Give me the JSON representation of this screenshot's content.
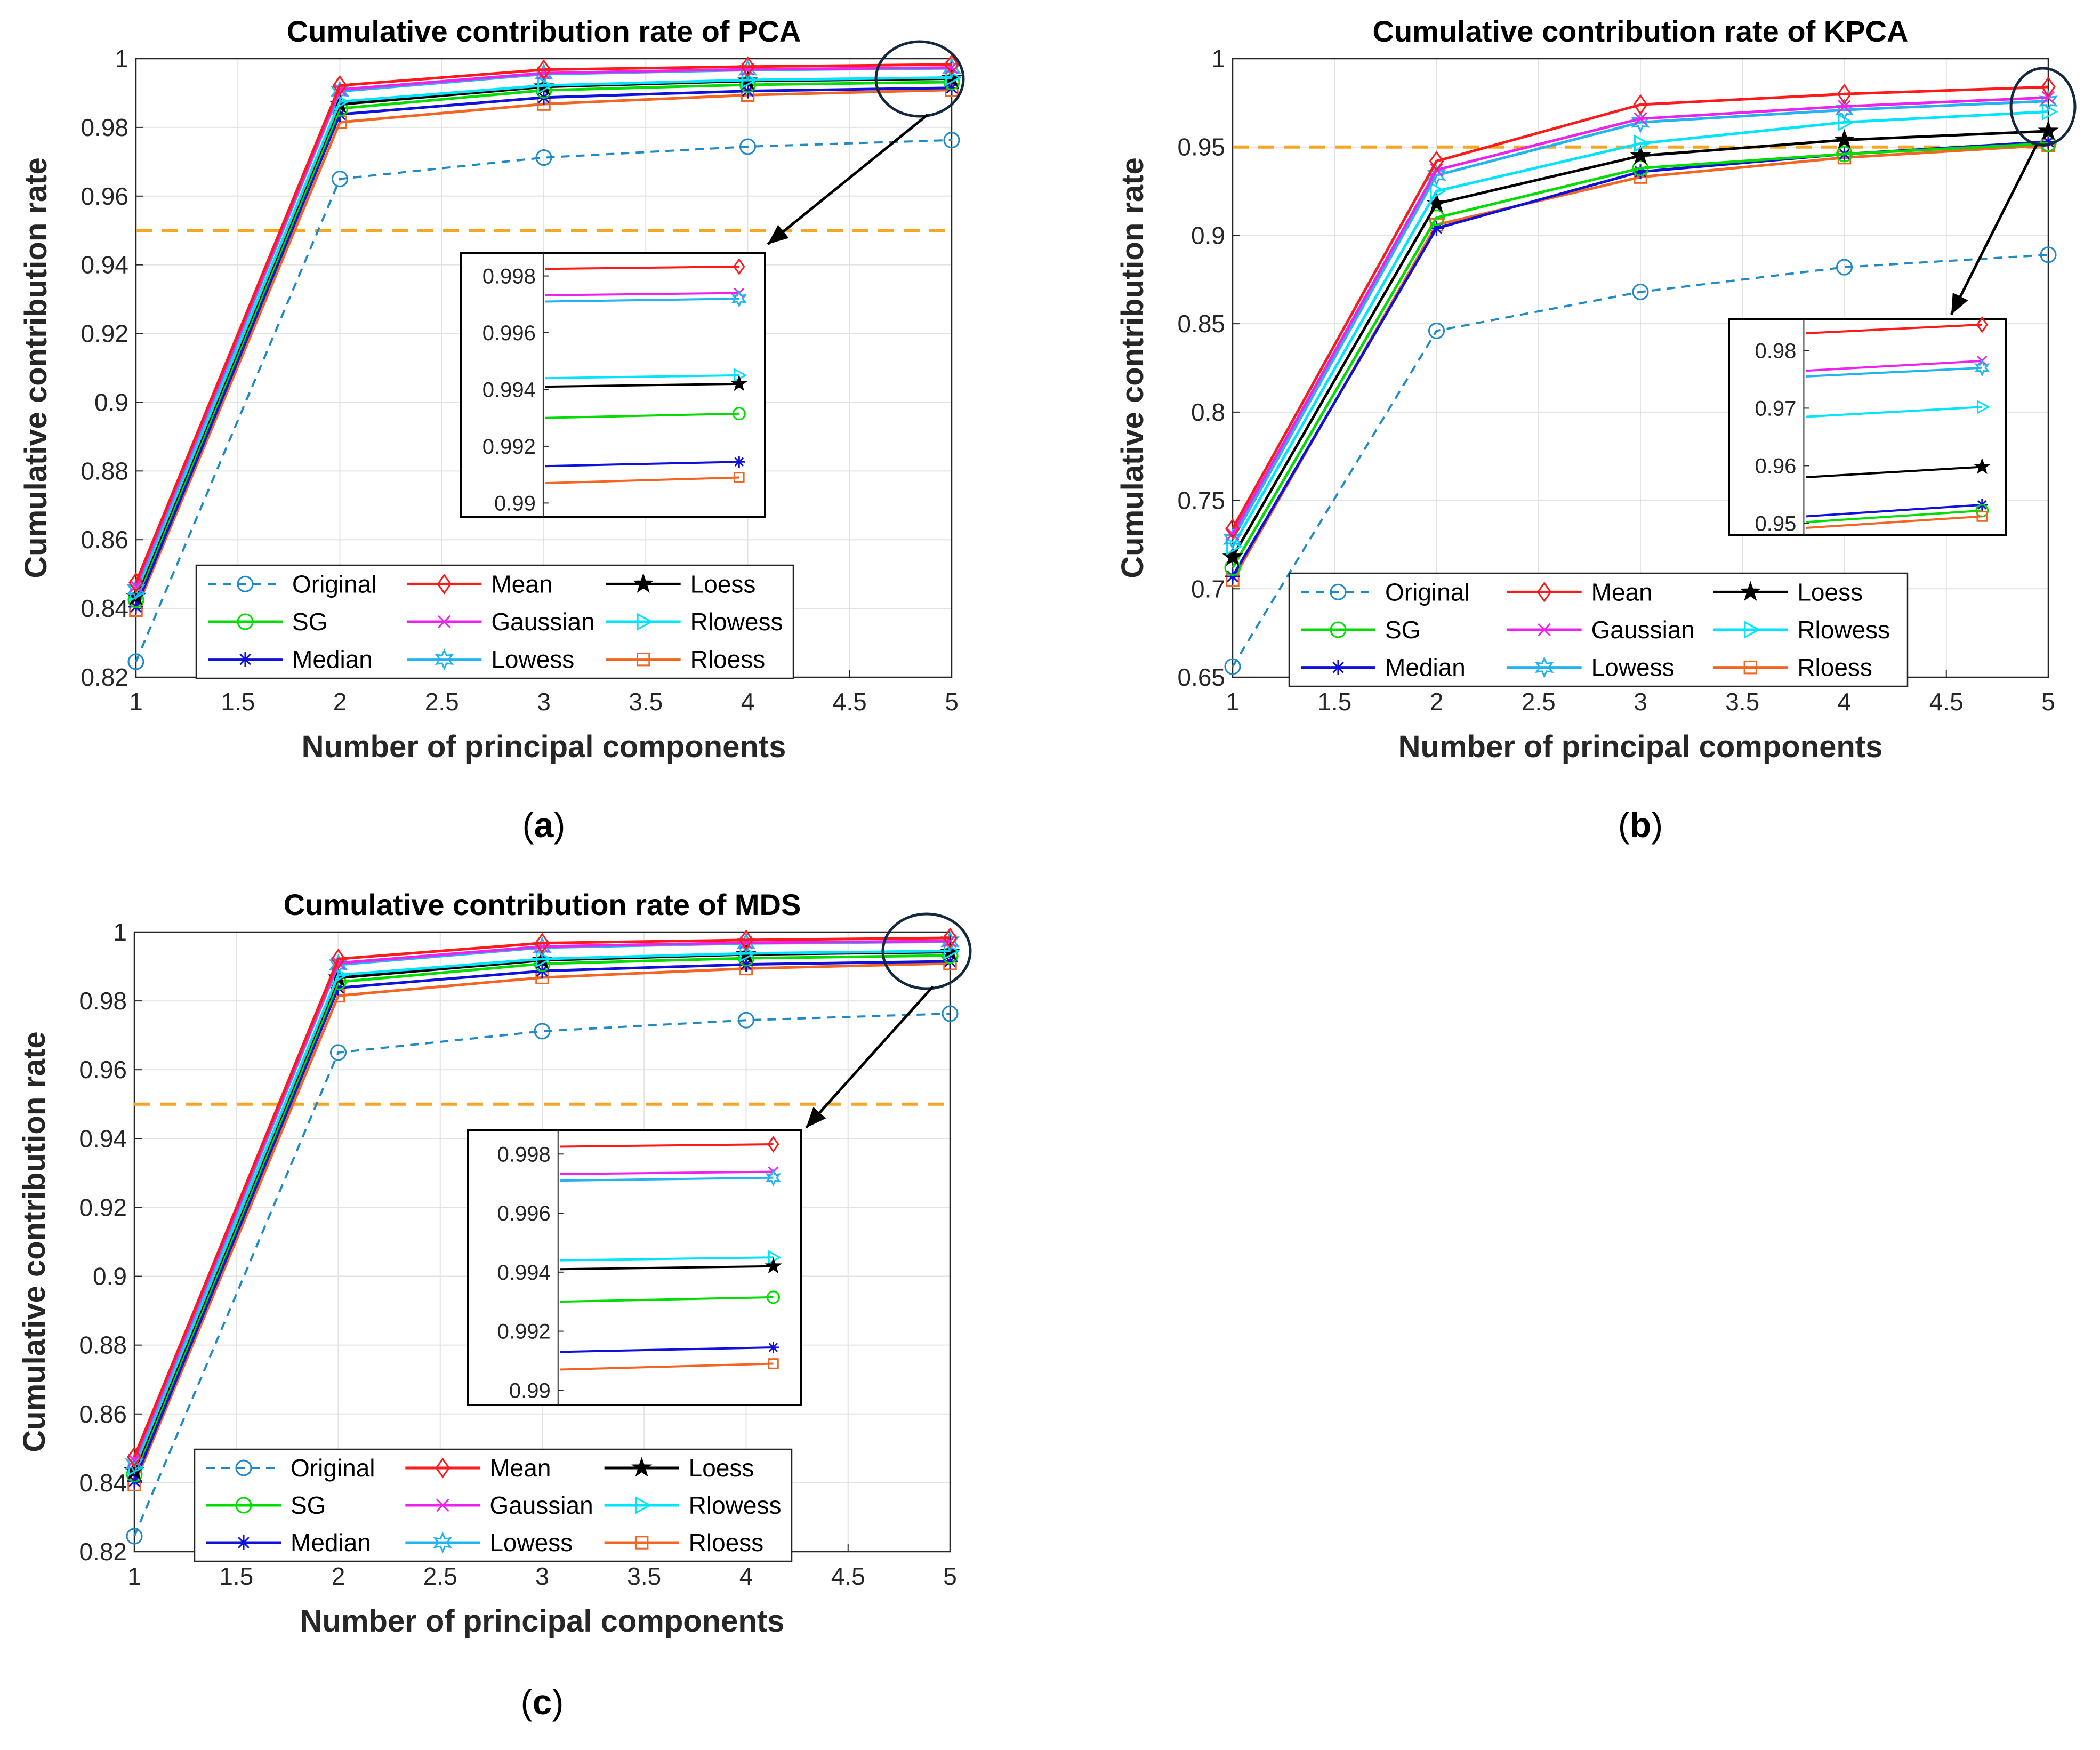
{
  "colors": {
    "Original": "#1f8ac8",
    "Mean": "#ff1a1a",
    "Loess": "#000000",
    "SG": "#00dd00",
    "Gaussian": "#ee22ee",
    "Rlowess": "#00e5ff",
    "Median": "#1010dd",
    "Lowess": "#22b4ee",
    "Rloess": "#f26522",
    "threshold": "#f5a623",
    "zoom_ellipse": "#14283f"
  },
  "legend_order": [
    "Original",
    "Mean",
    "Loess",
    "SG",
    "Gaussian",
    "Rlowess",
    "Median",
    "Lowess",
    "Rloess"
  ],
  "chart_data": [
    {
      "type": "line",
      "panel_label": "a",
      "title": "Cumulative contribution rate of PCA",
      "xlabel": "Number of principal components",
      "ylabel": "Cumulative contribution rate",
      "xlim": [
        1,
        5
      ],
      "ylim": [
        0.82,
        1
      ],
      "xticks": [
        1,
        1.5,
        2,
        2.5,
        3,
        3.5,
        4,
        4.5,
        5
      ],
      "xtick_labels": [
        "1",
        "1.5",
        "2",
        "2.5",
        "3",
        "3.5",
        "4",
        "4.5",
        "5"
      ],
      "yticks": [
        0.82,
        0.84,
        0.86,
        0.88,
        0.9,
        0.92,
        0.94,
        0.96,
        0.98,
        1
      ],
      "ytick_labels": [
        "0.82",
        "0.84",
        "0.86",
        "0.88",
        "0.9",
        "0.92",
        "0.94",
        "0.96",
        "0.98",
        "1"
      ],
      "threshold": 0.95,
      "x": [
        1,
        2,
        3,
        4,
        5
      ],
      "series": [
        {
          "name": "Original",
          "marker": "circle",
          "dash": true,
          "values": [
            0.8245,
            0.965,
            0.9712,
            0.9744,
            0.9763
          ]
        },
        {
          "name": "Mean",
          "marker": "diamond",
          "values": [
            0.8475,
            0.9922,
            0.9968,
            0.9977,
            0.9983
          ]
        },
        {
          "name": "Loess",
          "marker": "star5",
          "values": [
            0.8435,
            0.9867,
            0.9918,
            0.9935,
            0.9942
          ]
        },
        {
          "name": "SG",
          "marker": "circle",
          "values": [
            0.8425,
            0.9855,
            0.9908,
            0.9924,
            0.9932
          ]
        },
        {
          "name": "Gaussian",
          "marker": "xcross",
          "values": [
            0.8465,
            0.991,
            0.9958,
            0.9969,
            0.9974
          ]
        },
        {
          "name": "Rlowess",
          "marker": "triangle",
          "values": [
            0.8445,
            0.9875,
            0.9922,
            0.9938,
            0.9945
          ]
        },
        {
          "name": "Median",
          "marker": "asterisk",
          "values": [
            0.8405,
            0.9838,
            0.9887,
            0.9906,
            0.9915
          ]
        },
        {
          "name": "Lowess",
          "marker": "hexstar",
          "values": [
            0.8455,
            0.9905,
            0.9955,
            0.9967,
            0.9972
          ]
        },
        {
          "name": "Rloess",
          "marker": "square",
          "values": [
            0.8395,
            0.9815,
            0.9868,
            0.9894,
            0.9909
          ]
        }
      ],
      "inset": {
        "x": [
          4.82,
          4.99
        ],
        "xlim": [
          4.8,
          5.01
        ],
        "ylim": [
          0.9895,
          0.9988
        ],
        "yticks": [
          0.99,
          0.992,
          0.994,
          0.996,
          0.998
        ],
        "ytick_labels": [
          "0.99",
          "0.992",
          "0.994",
          "0.996",
          "0.998"
        ],
        "series": [
          {
            "name": "Mean",
            "values": [
              0.99825,
              0.99833
            ]
          },
          {
            "name": "Gaussian",
            "values": [
              0.99732,
              0.9974
            ]
          },
          {
            "name": "Lowess",
            "values": [
              0.9971,
              0.9972
            ]
          },
          {
            "name": "Rlowess",
            "values": [
              0.9944,
              0.9945
            ]
          },
          {
            "name": "Loess",
            "values": [
              0.9941,
              0.9942
            ]
          },
          {
            "name": "SG",
            "values": [
              0.993,
              0.99315
            ]
          },
          {
            "name": "Median",
            "values": [
              0.9913,
              0.99145
            ]
          },
          {
            "name": "Rloess",
            "values": [
              0.9907,
              0.9909
            ]
          }
        ]
      }
    },
    {
      "type": "line",
      "panel_label": "b",
      "title": "Cumulative contribution rate of KPCA",
      "xlabel": "Number of principal components",
      "ylabel": "Cumulative contribution rate",
      "xlim": [
        1,
        5
      ],
      "ylim": [
        0.65,
        1
      ],
      "xticks": [
        1,
        1.5,
        2,
        2.5,
        3,
        3.5,
        4,
        4.5,
        5
      ],
      "xtick_labels": [
        "1",
        "1.5",
        "2",
        "2.5",
        "3",
        "3.5",
        "4",
        "4.5",
        "5"
      ],
      "yticks": [
        0.65,
        0.7,
        0.75,
        0.8,
        0.85,
        0.9,
        0.95,
        1
      ],
      "ytick_labels": [
        "0.65",
        "0.7",
        "0.75",
        "0.8",
        "0.85",
        "0.9",
        "0.95",
        "1"
      ],
      "threshold": 0.95,
      "x": [
        1,
        2,
        3,
        4,
        5
      ],
      "series": [
        {
          "name": "Original",
          "marker": "circle",
          "dash": true,
          "values": [
            0.656,
            0.846,
            0.868,
            0.882,
            0.889
          ]
        },
        {
          "name": "Mean",
          "marker": "diamond",
          "values": [
            0.734,
            0.942,
            0.974,
            0.98,
            0.984
          ]
        },
        {
          "name": "Loess",
          "marker": "star5",
          "values": [
            0.718,
            0.918,
            0.945,
            0.954,
            0.959
          ]
        },
        {
          "name": "SG",
          "marker": "circle",
          "values": [
            0.712,
            0.91,
            0.938,
            0.946,
            0.952
          ]
        },
        {
          "name": "Gaussian",
          "marker": "xcross",
          "values": [
            0.731,
            0.937,
            0.966,
            0.973,
            0.978
          ]
        },
        {
          "name": "Rlowess",
          "marker": "triangle",
          "values": [
            0.724,
            0.925,
            0.952,
            0.964,
            0.97
          ]
        },
        {
          "name": "Median",
          "marker": "asterisk",
          "values": [
            0.707,
            0.904,
            0.936,
            0.946,
            0.953
          ]
        },
        {
          "name": "Lowess",
          "marker": "hexstar",
          "values": [
            0.728,
            0.934,
            0.964,
            0.971,
            0.976
          ]
        },
        {
          "name": "Rloess",
          "marker": "square",
          "values": [
            0.705,
            0.906,
            0.933,
            0.944,
            0.951
          ]
        }
      ],
      "inset": {
        "x": [
          4.82,
          4.99
        ],
        "xlim": [
          4.8,
          5.01
        ],
        "ylim": [
          0.948,
          0.9855
        ],
        "yticks": [
          0.95,
          0.96,
          0.97,
          0.98
        ],
        "ytick_labels": [
          "0.95",
          "0.96",
          "0.97",
          "0.98"
        ],
        "series": [
          {
            "name": "Mean",
            "values": [
              0.983,
              0.9845
            ]
          },
          {
            "name": "Gaussian",
            "values": [
              0.9765,
              0.9782
            ]
          },
          {
            "name": "Lowess",
            "values": [
              0.9755,
              0.977
            ]
          },
          {
            "name": "Rlowess",
            "values": [
              0.9685,
              0.9702
            ]
          },
          {
            "name": "Loess",
            "values": [
              0.958,
              0.9598
            ]
          },
          {
            "name": "Median",
            "values": [
              0.9512,
              0.9532
            ]
          },
          {
            "name": "SG",
            "values": [
              0.9502,
              0.9522
            ]
          },
          {
            "name": "Rloess",
            "values": [
              0.9492,
              0.9512
            ]
          }
        ]
      }
    },
    {
      "type": "line",
      "panel_label": "c",
      "title": "Cumulative contribution rate of MDS",
      "xlabel": "Number of principal components",
      "ylabel": "Cumulative contribution rate",
      "xlim": [
        1,
        5
      ],
      "ylim": [
        0.82,
        1
      ],
      "xticks": [
        1,
        1.5,
        2,
        2.5,
        3,
        3.5,
        4,
        4.5,
        5
      ],
      "xtick_labels": [
        "1",
        "1.5",
        "2",
        "2.5",
        "3",
        "3.5",
        "4",
        "4.5",
        "5"
      ],
      "yticks": [
        0.82,
        0.84,
        0.86,
        0.88,
        0.9,
        0.92,
        0.94,
        0.96,
        0.98,
        1
      ],
      "ytick_labels": [
        "0.82",
        "0.84",
        "0.86",
        "0.88",
        "0.9",
        "0.92",
        "0.94",
        "0.96",
        "0.98",
        "1"
      ],
      "threshold": 0.95,
      "x": [
        1,
        2,
        3,
        4,
        5
      ],
      "series": [
        {
          "name": "Original",
          "marker": "circle",
          "dash": true,
          "values": [
            0.8245,
            0.965,
            0.9712,
            0.9744,
            0.9763
          ]
        },
        {
          "name": "Mean",
          "marker": "diamond",
          "values": [
            0.8475,
            0.9922,
            0.9968,
            0.9977,
            0.9983
          ]
        },
        {
          "name": "Loess",
          "marker": "star5",
          "values": [
            0.8435,
            0.9867,
            0.9918,
            0.9935,
            0.9942
          ]
        },
        {
          "name": "SG",
          "marker": "circle",
          "values": [
            0.8425,
            0.9855,
            0.9908,
            0.9924,
            0.9932
          ]
        },
        {
          "name": "Gaussian",
          "marker": "xcross",
          "values": [
            0.8465,
            0.991,
            0.9958,
            0.9969,
            0.9974
          ]
        },
        {
          "name": "Rlowess",
          "marker": "triangle",
          "values": [
            0.8445,
            0.9875,
            0.9922,
            0.9938,
            0.9945
          ]
        },
        {
          "name": "Median",
          "marker": "asterisk",
          "values": [
            0.8405,
            0.9838,
            0.9887,
            0.9906,
            0.9915
          ]
        },
        {
          "name": "Lowess",
          "marker": "hexstar",
          "values": [
            0.8455,
            0.9905,
            0.9955,
            0.9967,
            0.9972
          ]
        },
        {
          "name": "Rloess",
          "marker": "square",
          "values": [
            0.8395,
            0.9815,
            0.9868,
            0.9894,
            0.9909
          ]
        }
      ],
      "inset": {
        "x": [
          4.82,
          4.99
        ],
        "xlim": [
          4.8,
          5.01
        ],
        "ylim": [
          0.9895,
          0.9988
        ],
        "yticks": [
          0.99,
          0.992,
          0.994,
          0.996,
          0.998
        ],
        "ytick_labels": [
          "0.99",
          "0.992",
          "0.994",
          "0.996",
          "0.998"
        ],
        "series": [
          {
            "name": "Mean",
            "values": [
              0.99825,
              0.99833
            ]
          },
          {
            "name": "Gaussian",
            "values": [
              0.99732,
              0.9974
            ]
          },
          {
            "name": "Lowess",
            "values": [
              0.9971,
              0.9972
            ]
          },
          {
            "name": "Rlowess",
            "values": [
              0.9944,
              0.9945
            ]
          },
          {
            "name": "Loess",
            "values": [
              0.9941,
              0.9942
            ]
          },
          {
            "name": "SG",
            "values": [
              0.993,
              0.99315
            ]
          },
          {
            "name": "Median",
            "values": [
              0.9913,
              0.99145
            ]
          },
          {
            "name": "Rloess",
            "values": [
              0.9907,
              0.9909
            ]
          }
        ]
      }
    }
  ]
}
